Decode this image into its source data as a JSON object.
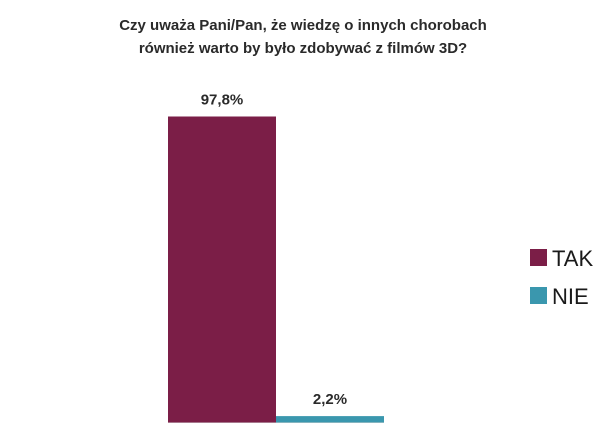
{
  "chart_data": {
    "type": "bar",
    "title_lines": [
      "Czy uważa Pani/Pan, że wiedzę o innych chorobach",
      "również warto by było zdobywać z filmów 3D?"
    ],
    "series": [
      {
        "name": "TAK",
        "value": 97.8,
        "label": "97,8%",
        "color": "#7B1E47"
      },
      {
        "name": "NIE",
        "value": 2.2,
        "label": "2,2%",
        "color": "#3A97AE"
      }
    ],
    "ylim": [
      0,
      100
    ],
    "grid": false,
    "legend_position": "right"
  }
}
